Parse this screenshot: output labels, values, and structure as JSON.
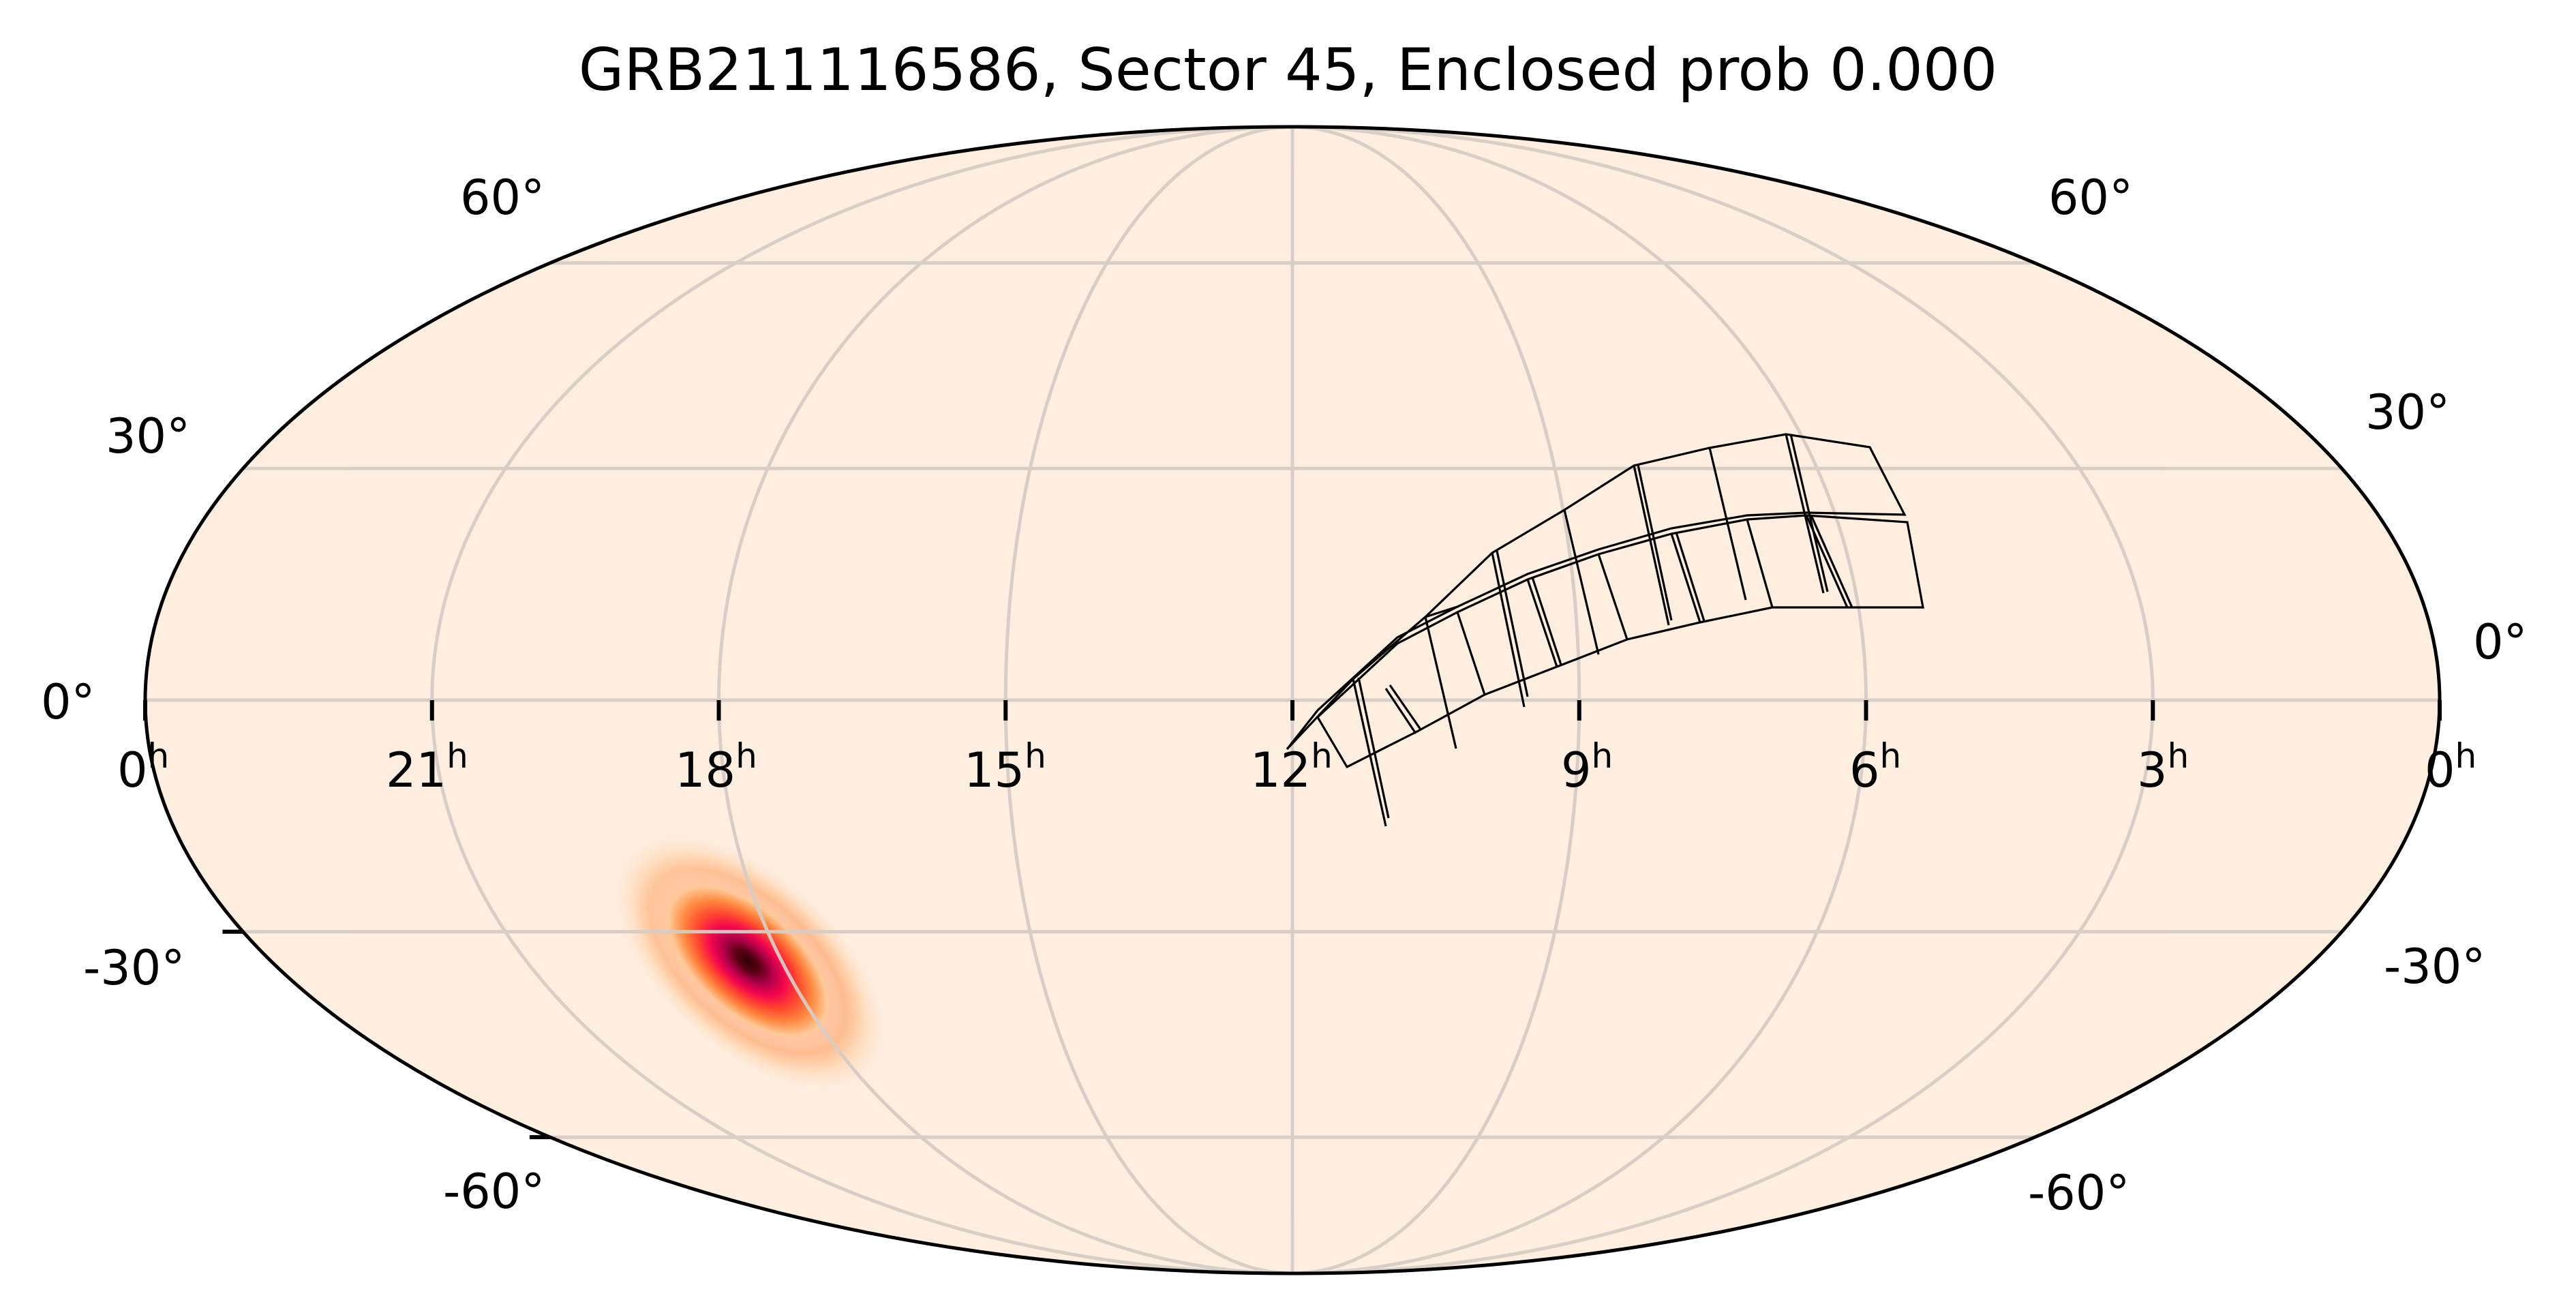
{
  "chart_data": {
    "type": "heatmap",
    "projection": "mollweide",
    "title": "GRB211116586, Sector 45, Enclosed prob 0.000",
    "xlabel": "",
    "ylabel": "",
    "grid": true,
    "legend": null,
    "ra_tick_labels": [
      "0h",
      "21h",
      "18h",
      "15h",
      "12h",
      "9h",
      "6h",
      "3h",
      "0h"
    ],
    "ra_tick_hours": [
      24,
      21,
      18,
      15,
      12,
      9,
      6,
      3,
      0
    ],
    "dec_tick_labels_left": [
      "60°",
      "30°",
      "0°",
      "-30°",
      "-60°"
    ],
    "dec_tick_labels_right": [
      "60°",
      "30°",
      "0°",
      "-30°",
      "-60°"
    ],
    "dec_ticks_deg": [
      60,
      30,
      0,
      -30,
      -60
    ],
    "grb_localization": {
      "name": "GRB211116586",
      "center_ra_hours": 17.5,
      "center_dec_deg": -35,
      "shape": "elongated gaussian, tilted NW-SE",
      "colormap": [
        "#feeee0",
        "#ffb070",
        "#ff6a2a",
        "#ff0a4a",
        "#c0004a",
        "#3d0008"
      ]
    },
    "tess_sector": {
      "sector": 45,
      "enclosed_prob": 0.0,
      "ccd_grid": "2 rows x 8 columns",
      "ra_range_hours_approx": [
        5.5,
        11.8
      ],
      "dec_range_deg_approx": [
        -3,
        35
      ]
    },
    "colors": {
      "background": "#feeee0",
      "graticule": "#d6cdc6",
      "outline": "#000000",
      "footprint": "#000000"
    }
  },
  "labels": {
    "title": "GRB211116586, Sector 45, Enclosed prob 0.000",
    "ra": [
      {
        "num": "0",
        "sup": "h"
      },
      {
        "num": "21",
        "sup": "h"
      },
      {
        "num": "18",
        "sup": "h"
      },
      {
        "num": "15",
        "sup": "h"
      },
      {
        "num": "12",
        "sup": "h"
      },
      {
        "num": "9",
        "sup": "h"
      },
      {
        "num": "6",
        "sup": "h"
      },
      {
        "num": "3",
        "sup": "h"
      },
      {
        "num": "0",
        "sup": "h"
      }
    ],
    "dec_left": [
      "60°",
      "30°",
      "0°",
      "-30°",
      "-60°"
    ],
    "dec_right": [
      "60°",
      "30°",
      "0°",
      "-30°",
      "-60°"
    ]
  }
}
